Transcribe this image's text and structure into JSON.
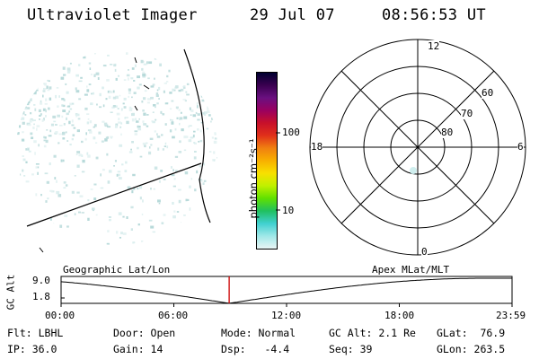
{
  "header": {
    "title": "Ultraviolet Imager",
    "date": "29 Jul 07",
    "time": "08:56:53 UT"
  },
  "colorbar": {
    "unit_label": "photon cm⁻²s⁻¹",
    "ticks": [
      "100",
      "10"
    ],
    "colors": [
      "#000030",
      "#3a0050",
      "#6a1080",
      "#9a0060",
      "#c8102a",
      "#e0301a",
      "#f08010",
      "#f8b000",
      "#f8e000",
      "#c0f000",
      "#60e000",
      "#20c060",
      "#40d0d0",
      "#a0e8e8",
      "#e8f4f4"
    ]
  },
  "polar": {
    "mlt_labels": {
      "top": "12",
      "left": "18",
      "right": "6",
      "bottom": "0"
    },
    "lat_labels": [
      "60",
      "70",
      "80"
    ]
  },
  "timeline": {
    "left_label": "Geographic Lat/Lon",
    "right_label": "Apex MLat/MLT",
    "axis_title": "GC Alt",
    "y_ticks": [
      "9.0",
      "1.8"
    ],
    "x_ticks": [
      "00:00",
      "06:00",
      "12:00",
      "18:00",
      "23:59"
    ],
    "current_time_fraction": 0.3728,
    "curve_color": "#000000",
    "marker_color": "#cc0000"
  },
  "footer": {
    "filter": "Flt: LBHL",
    "door": "Door: Open",
    "mode": "Mode: Normal",
    "gc_alt": "GC Alt: 2.1 Re",
    "glat": "GLat:  76.9",
    "ip": "IP: 36.0",
    "gain": "Gain: 14",
    "dsp": "Dsp:   -4.4",
    "seq": "Seq: 39",
    "glon": "GLon: 263.5"
  }
}
